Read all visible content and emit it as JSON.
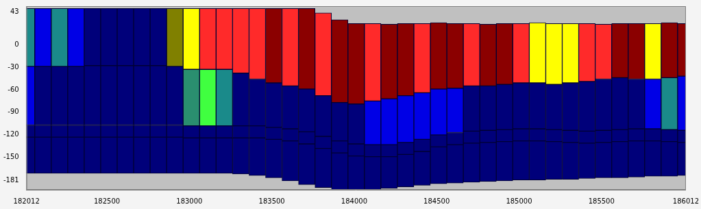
{
  "chart_data": {
    "type": "bar",
    "grid": false,
    "xlim": [
      182012,
      186012
    ],
    "xticks": [
      182012,
      182500,
      183000,
      183500,
      184000,
      184500,
      185000,
      185500,
      186012
    ],
    "ylim": [
      -193,
      51
    ],
    "yticks": [
      43,
      0,
      -30,
      -60,
      -90,
      -120,
      -150,
      -181
    ],
    "x": [
      182012,
      182112,
      182212,
      182312,
      182412,
      182512,
      182612,
      182712,
      182812,
      182912,
      183012,
      183112,
      183212,
      183312,
      183412,
      183512,
      183612,
      183712,
      183812,
      183912,
      184012,
      184112,
      184212,
      184312,
      184412,
      184512,
      184612,
      184712,
      184812,
      184912,
      185012,
      185112,
      185212,
      185312,
      185412,
      185512,
      185612,
      185712,
      185812,
      185912,
      186012
    ],
    "surface": [
      48,
      48,
      48,
      48,
      48,
      48,
      48,
      48,
      48,
      48,
      48,
      48,
      48,
      48,
      48,
      48,
      48,
      48,
      42,
      33,
      28,
      28,
      27,
      28,
      28,
      29,
      28,
      28,
      27,
      28,
      28,
      29,
      28,
      28,
      28,
      27,
      28,
      28,
      28,
      29,
      28
    ],
    "layers": [
      {
        "bottom": [
          -29,
          -29,
          -29,
          -29,
          -28,
          -28,
          -28,
          -28,
          -28,
          -29,
          -33,
          -33,
          -33,
          -38,
          -46,
          -51,
          -55,
          -59,
          -68,
          -77,
          -79,
          -75,
          -72,
          -68,
          -64,
          -59,
          -58,
          -55,
          -55,
          -53,
          -51,
          -51,
          -53,
          -51,
          -49,
          -46,
          -44,
          -46,
          -46,
          -44,
          -42
        ],
        "colors": [
          "#1a8a8a",
          "#0000e6",
          "#1a8a8a",
          "#0000e6",
          "#00007a",
          "#00007a",
          "#00007a",
          "#00007a",
          "#00007a",
          "#808000",
          "#ffff00",
          "#ff2a2a",
          "#ff2a2a",
          "#ff2a2a",
          "#ff2a2a",
          "#8b0000",
          "#ff2a2a",
          "#8b0000",
          "#ff2a2a",
          "#8b0000",
          "#8b0000",
          "#ff2a2a",
          "#8b0000",
          "#8b0000",
          "#ff2a2a",
          "#8b0000",
          "#8b0000",
          "#ff2a2a",
          "#8b0000",
          "#8b0000",
          "#ff2a2a",
          "#ffff00",
          "#ffff00",
          "#ffff00",
          "#ff2a2a",
          "#ff2a2a",
          "#8b0000",
          "#8b0000",
          "#ffff00",
          "#8b0000",
          "#8b0000"
        ]
      },
      {
        "bottom": [
          -107,
          -107,
          -107,
          -107,
          -107,
          -107,
          -107,
          -107,
          -107,
          -107,
          -108,
          -108,
          -108,
          -108,
          -108,
          -110,
          -112,
          -116,
          -122,
          -128,
          -132,
          -133,
          -133,
          -130,
          -126,
          -120,
          -117,
          -115,
          -114,
          -113,
          -112,
          -112,
          -113,
          -114,
          -115,
          -114,
          -113,
          -112,
          -112,
          -113,
          -114
        ],
        "colors": [
          "#0000e6",
          "#00007a",
          "#00007a",
          "#00007a",
          "#00007a",
          "#00007a",
          "#00007a",
          "#00007a",
          "#00007a",
          "#00007a",
          "#2a8f6f",
          "#40ff40",
          "#1a8a8a",
          "#00007a",
          "#00007a",
          "#00007a",
          "#00007a",
          "#00007a",
          "#00007a",
          "#00007a",
          "#00007a",
          "#0000e6",
          "#0000e6",
          "#0000e6",
          "#0000e6",
          "#0000e6",
          "#0000e6",
          "#00007a",
          "#00007a",
          "#00007a",
          "#00007a",
          "#00007a",
          "#00007a",
          "#00007a",
          "#00007a",
          "#00007a",
          "#00007a",
          "#00007a",
          "#0000e6",
          "#1a8a8a",
          "#0000e6"
        ]
      },
      {
        "bottom": [
          -123,
          -123,
          -123,
          -123,
          -123,
          -123,
          -123,
          -123,
          -123,
          -123,
          -124,
          -124,
          -124,
          -124,
          -124,
          -126,
          -128,
          -132,
          -138,
          -144,
          -148,
          -149,
          -149,
          -146,
          -142,
          -136,
          -133,
          -131,
          -130,
          -129,
          -128,
          -128,
          -129,
          -130,
          -131,
          -130,
          -129,
          -128,
          -128,
          -129,
          -130
        ],
        "color": "#00007a"
      },
      {
        "bottom": [
          -171,
          -171,
          -171,
          -171,
          -171,
          -171,
          -171,
          -171,
          -171,
          -171,
          -171,
          -171,
          -171,
          -172,
          -174,
          -177,
          -181,
          -186,
          -190,
          -193,
          -193,
          -193,
          -191,
          -189,
          -187,
          -185,
          -184,
          -183,
          -182,
          -181,
          -180,
          -180,
          -179,
          -179,
          -178,
          -177,
          -177,
          -176,
          -175,
          -175,
          -174
        ],
        "color": "#00007a"
      }
    ]
  }
}
